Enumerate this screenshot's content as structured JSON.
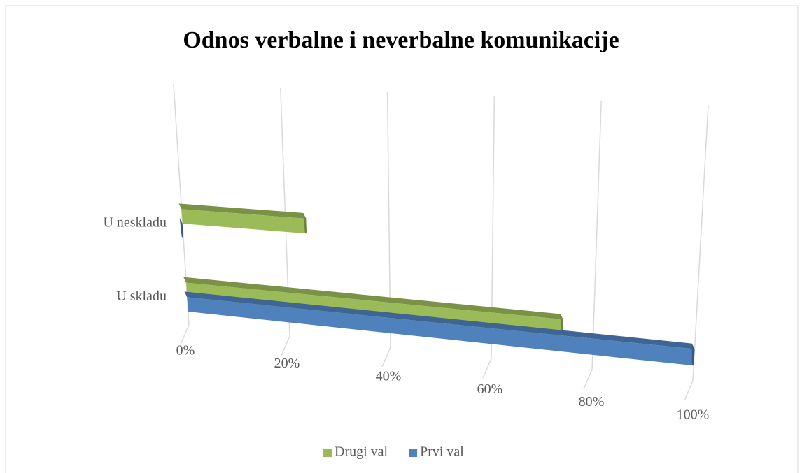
{
  "chart_data": {
    "type": "bar3d",
    "title": "Odnos verbalne i neverbalne komunikacije",
    "categories": [
      "U skladu",
      "U neskladu"
    ],
    "series": [
      {
        "name": "Drugi val",
        "color": "#9bbb59",
        "values": [
          74,
          24
        ]
      },
      {
        "name": "Prvi val",
        "color": "#4f81bd",
        "values": [
          100,
          0
        ]
      }
    ],
    "xlim": [
      0,
      100
    ],
    "xticks": [
      {
        "value": 0,
        "label": "0%"
      },
      {
        "value": 20,
        "label": "20%"
      },
      {
        "value": 40,
        "label": "40%"
      },
      {
        "value": 60,
        "label": "60%"
      },
      {
        "value": 80,
        "label": "80%"
      },
      {
        "value": 100,
        "label": "100%"
      }
    ],
    "grid": true,
    "legend": "bottom"
  }
}
